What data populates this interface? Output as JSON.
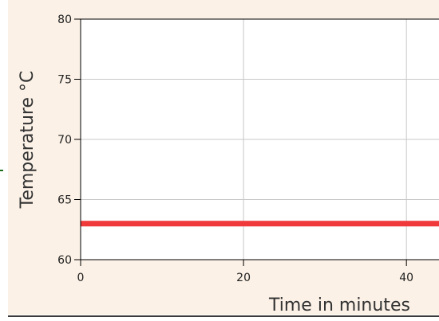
{
  "colors": {
    "panel_background": "#fbf1e6",
    "plot_background": "#ffffff",
    "series_line": "#f0393a",
    "axis": "#000000",
    "grid": "#c8c8c8",
    "bottom_rule": "#3a3a3a",
    "left_tick_mark": "#1a6e1a"
  },
  "chart_data": {
    "type": "line",
    "xlabel": "Time in minutes",
    "ylabel": "Temperature °C",
    "xlim": [
      0,
      44
    ],
    "ylim": [
      60,
      80
    ],
    "xticks": [
      0,
      20,
      40
    ],
    "yticks": [
      60,
      65,
      70,
      75,
      80
    ],
    "grid": true,
    "series": [
      {
        "x": [
          0,
          44
        ],
        "y": [
          63,
          63
        ]
      }
    ]
  }
}
